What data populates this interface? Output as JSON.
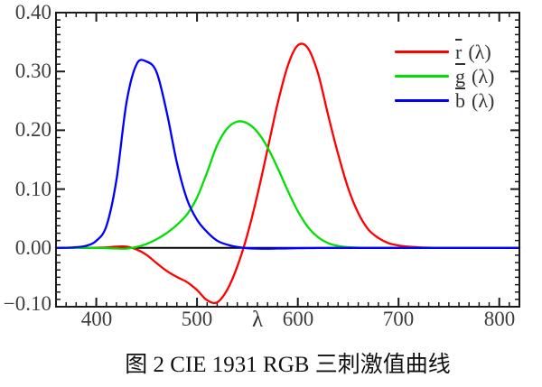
{
  "figure": {
    "caption": "图 2 CIE 1931 RGB 三刺激值曲线"
  },
  "axes": {
    "x": {
      "label": "λ",
      "ticks": [
        "400",
        "500",
        "600",
        "700",
        "800"
      ],
      "tick_values": [
        400,
        500,
        600,
        700,
        800
      ],
      "minor_step": 10
    },
    "y": {
      "ticks": [
        "0.40",
        "0.30",
        "0.20",
        "0.10",
        "0.00",
        "−0.10"
      ],
      "tick_values": [
        0.4,
        0.3,
        0.2,
        0.1,
        0.0,
        -0.1
      ],
      "minor_step": 0.0125
    }
  },
  "legend": {
    "items": [
      {
        "letter": "r",
        "suffix": "(λ)",
        "color": "#ff0000"
      },
      {
        "letter": "g",
        "suffix": "(λ)",
        "color": "#00e000"
      },
      {
        "letter": "b",
        "suffix": "(λ)",
        "color": "#0000ff"
      }
    ]
  },
  "colors": {
    "axis": "#1a1a1a",
    "zero_line": "#000000",
    "tick_label": "#3d3d3d"
  },
  "chart_data": {
    "type": "line",
    "title": "",
    "xlabel": "λ",
    "ylabel": "",
    "xlim": [
      360,
      820
    ],
    "ylim": [
      -0.1,
      0.4
    ],
    "grid": false,
    "legend_position": "upper-right",
    "zero_line": true,
    "x": [
      360,
      370,
      380,
      390,
      400,
      410,
      420,
      430,
      440,
      450,
      460,
      470,
      480,
      490,
      500,
      510,
      520,
      530,
      540,
      550,
      560,
      570,
      580,
      590,
      600,
      610,
      620,
      630,
      640,
      650,
      660,
      670,
      680,
      690,
      700,
      710,
      720,
      730,
      740,
      750,
      760,
      770,
      780,
      790,
      800,
      810,
      820
    ],
    "series": [
      {
        "id": "r",
        "name": "r̄(λ)",
        "color": "#ff0000",
        "values": [
          0,
          0,
          0,
          0.0001,
          0.0003,
          0.0008,
          0.0021,
          0.0022,
          -0.0026,
          -0.0121,
          -0.0261,
          -0.0393,
          -0.0494,
          -0.0581,
          -0.0717,
          -0.089,
          -0.0926,
          -0.071,
          -0.0315,
          0.0228,
          0.0906,
          0.1677,
          0.2453,
          0.3093,
          0.3443,
          0.3397,
          0.2971,
          0.2268,
          0.1597,
          0.1017,
          0.0593,
          0.0315,
          0.0169,
          0.0082,
          0.0041,
          0.0021,
          0.0011,
          0.0005,
          0.0003,
          0.0001,
          0.0001,
          0,
          0,
          0,
          0,
          0,
          0
        ]
      },
      {
        "id": "g",
        "name": "ḡ(λ)",
        "color": "#00e000",
        "values": [
          0,
          0,
          0,
          0,
          -0.0001,
          -0.0004,
          -0.0011,
          -0.0012,
          0.0015,
          0.0068,
          0.0149,
          0.0254,
          0.0391,
          0.0569,
          0.0854,
          0.1286,
          0.1747,
          0.2032,
          0.2147,
          0.2118,
          0.197,
          0.1709,
          0.1361,
          0.0975,
          0.0625,
          0.0356,
          0.0183,
          0.0083,
          0.0033,
          0.0012,
          0.0004,
          0.0001,
          0,
          0,
          0,
          0,
          0,
          0,
          0,
          0,
          0,
          0,
          0,
          0,
          0,
          0,
          0
        ]
      },
      {
        "id": "b",
        "name": "b̄(λ)",
        "color": "#0000ff",
        "values": [
          0,
          0.0003,
          0.0012,
          0.0036,
          0.0121,
          0.0371,
          0.1154,
          0.2477,
          0.3123,
          0.3167,
          0.2982,
          0.2299,
          0.1449,
          0.0826,
          0.0478,
          0.027,
          0.0122,
          0.0055,
          0.0015,
          -0.0006,
          -0.0013,
          -0.0014,
          -0.0011,
          -0.0008,
          -0.0005,
          -0.0003,
          -0.0002,
          -0.0001,
          0,
          0,
          0,
          0,
          0,
          0,
          0,
          0,
          0,
          0,
          0,
          0,
          0,
          0,
          0,
          0,
          0,
          0,
          0
        ]
      }
    ]
  }
}
